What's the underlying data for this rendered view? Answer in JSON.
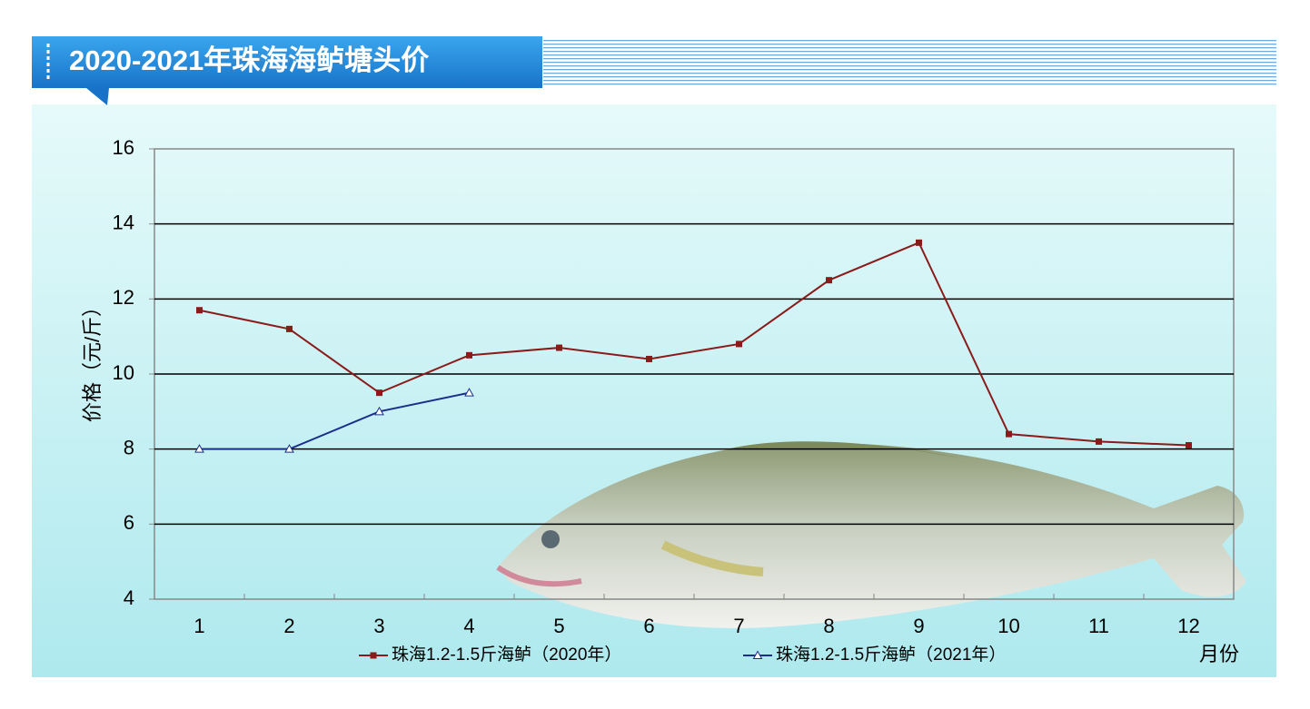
{
  "chart_data": {
    "type": "line",
    "title": "2020-2021年珠海海鲈塘头价",
    "ylabel": "价格（元/斤）",
    "xlabel": "月份",
    "categories": [
      "1",
      "2",
      "3",
      "4",
      "5",
      "6",
      "7",
      "8",
      "9",
      "10",
      "11",
      "12"
    ],
    "series": [
      {
        "name": "珠海1.2-1.5斤海鲈（2020年）",
        "color": "#8b1a1a",
        "marker": "square",
        "values": [
          11.7,
          11.2,
          9.5,
          10.5,
          10.7,
          10.4,
          10.8,
          12.5,
          13.5,
          8.4,
          8.2,
          8.1
        ]
      },
      {
        "name": "珠海1.2-1.5斤海鲈（2021年）",
        "color": "#1a2f8a",
        "marker": "triangle",
        "values": [
          8,
          8,
          9,
          9.5,
          null,
          null,
          null,
          null,
          null,
          null,
          null,
          null
        ]
      }
    ],
    "ylim": [
      4,
      16
    ],
    "yticks": [
      4,
      6,
      8,
      10,
      12,
      14,
      16
    ],
    "grid": true
  }
}
